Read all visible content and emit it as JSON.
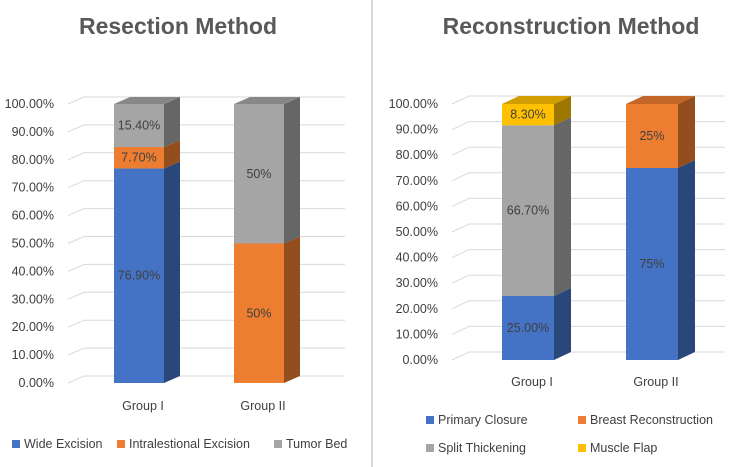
{
  "chart_data": [
    {
      "type": "bar",
      "stacked": true,
      "style": "3d-column",
      "title": "Resection Method",
      "categories": [
        "Group I",
        "Group II"
      ],
      "series": [
        {
          "name": "Wide Excision",
          "color": "#4472C4",
          "values": [
            76.9,
            0
          ],
          "labels": [
            "76.90%",
            null
          ]
        },
        {
          "name": "Intralestional Excision",
          "color": "#ED7D31",
          "values": [
            7.7,
            50
          ],
          "labels": [
            "7.70%",
            "50%"
          ]
        },
        {
          "name": "Tumor Bed",
          "color": "#A5A5A5",
          "values": [
            15.4,
            50
          ],
          "labels": [
            "15.40%",
            "50%"
          ]
        }
      ],
      "ylim": [
        0,
        100
      ],
      "yticks": [
        "0.00%",
        "10.00%",
        "20.00%",
        "30.00%",
        "40.00%",
        "50.00%",
        "60.00%",
        "70.00%",
        "80.00%",
        "90.00%",
        "100.00%"
      ],
      "xlabel": "",
      "ylabel": "",
      "legend_position": "bottom"
    },
    {
      "type": "bar",
      "stacked": true,
      "style": "3d-column",
      "title": "Reconstruction Method",
      "categories": [
        "Group I",
        "Group II"
      ],
      "series": [
        {
          "name": "Primary Closure",
          "color": "#4472C4",
          "values": [
            25.0,
            75
          ],
          "labels": [
            "25.00%",
            "75%"
          ]
        },
        {
          "name": "Breast Reconstruction",
          "color": "#ED7D31",
          "values": [
            0,
            25
          ],
          "labels": [
            null,
            "25%"
          ]
        },
        {
          "name": "Split Thickening",
          "color": "#A5A5A5",
          "values": [
            66.7,
            0
          ],
          "labels": [
            "66.70%",
            null
          ]
        },
        {
          "name": "Muscle Flap",
          "color": "#FFC000",
          "values": [
            8.3,
            0
          ],
          "labels": [
            "8.30%",
            null
          ]
        }
      ],
      "ylim": [
        0,
        100
      ],
      "yticks": [
        "0.00%",
        "10.00%",
        "20.00%",
        "30.00%",
        "40.00%",
        "50.00%",
        "60.00%",
        "70.00%",
        "80.00%",
        "90.00%",
        "100.00%"
      ],
      "xlabel": "",
      "ylabel": "",
      "legend_position": "bottom"
    }
  ]
}
